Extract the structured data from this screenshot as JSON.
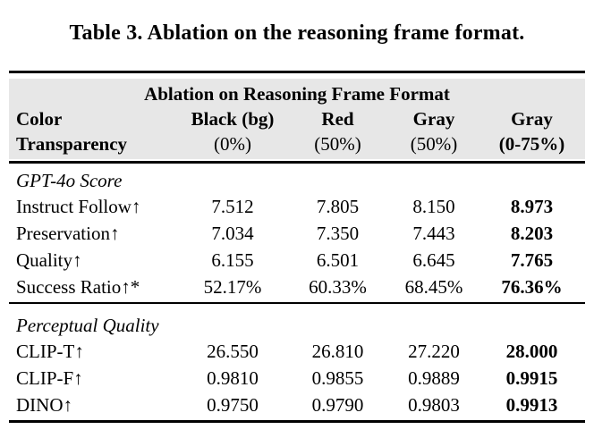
{
  "caption": "Table 3. Ablation on the reasoning frame format.",
  "table": {
    "band_title": "Ablation on Reasoning Frame Format",
    "header": {
      "row_label_line1": "Color",
      "row_label_line2": "Transparency",
      "col1_line1": "Black (bg)",
      "col1_line2": "(0%)",
      "col2_line1": "Red",
      "col2_line2": "(50%)",
      "col3_line1": "Gray",
      "col3_line2": "(50%)",
      "col4_line1": "Gray",
      "col4_line2": "(0-75%)"
    },
    "sections": [
      {
        "title": "GPT-4o Score",
        "rows": [
          {
            "label": "Instruct Follow↑",
            "values": [
              "7.512",
              "7.805",
              "8.150",
              "8.973"
            ]
          },
          {
            "label": "Preservation↑",
            "values": [
              "7.034",
              "7.350",
              "7.443",
              "8.203"
            ]
          },
          {
            "label": "Quality↑",
            "values": [
              "6.155",
              "6.501",
              "6.645",
              "7.765"
            ]
          },
          {
            "label": "Success Ratio↑*",
            "values": [
              "52.17%",
              "60.33%",
              "68.45%",
              "76.36%"
            ]
          }
        ]
      },
      {
        "title": "Perceptual Quality",
        "rows": [
          {
            "label": "CLIP-T↑",
            "values": [
              "26.550",
              "26.810",
              "27.220",
              "28.000"
            ]
          },
          {
            "label": "CLIP-F↑",
            "values": [
              "0.9810",
              "0.9855",
              "0.9889",
              "0.9915"
            ]
          },
          {
            "label": "DINO↑",
            "values": [
              "0.9750",
              "0.9790",
              "0.9803",
              "0.9913"
            ]
          }
        ]
      }
    ]
  },
  "colors": {
    "band_bg": "#e7e7e7",
    "rule": "#000000",
    "text": "#000000"
  }
}
